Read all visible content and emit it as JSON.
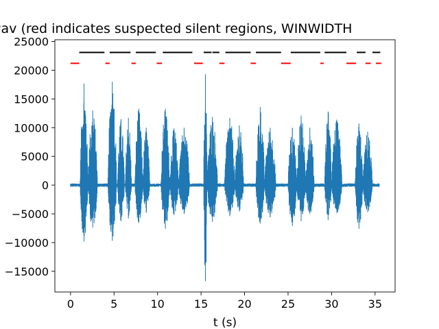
{
  "chart_data": {
    "type": "line",
    "title": "wav (red indicates suspected silent regions, WINWIDTH",
    "xlabel": "t (s)",
    "ylabel": "",
    "xlim": [
      -1.8,
      37.3
    ],
    "ylim": [
      -18600,
      25300
    ],
    "x_ticks": [
      0,
      5,
      10,
      15,
      20,
      25,
      30,
      35
    ],
    "x_tick_labels": [
      "0",
      "5",
      "10",
      "15",
      "20",
      "25",
      "30",
      "35"
    ],
    "y_ticks": [
      -15000,
      -10000,
      -5000,
      0,
      5000,
      10000,
      15000,
      20000,
      25000
    ],
    "y_tick_labels": [
      "−15000",
      "−10000",
      "−5000",
      "0",
      "5000",
      "10000",
      "15000",
      "20000",
      "25000"
    ],
    "grid": false,
    "waveform": {
      "color": "#1f77b4",
      "duration": 35.5,
      "bursts": [
        {
          "start": 1.1,
          "end": 2.0,
          "pos": 17700,
          "neg": -9800
        },
        {
          "start": 2.0,
          "end": 3.1,
          "pos": 13000,
          "neg": -7400
        },
        {
          "start": 4.3,
          "end": 5.3,
          "pos": 18000,
          "neg": -9700
        },
        {
          "start": 5.4,
          "end": 6.2,
          "pos": 11500,
          "neg": -6300
        },
        {
          "start": 6.3,
          "end": 7.0,
          "pos": 11700,
          "neg": -5800
        },
        {
          "start": 7.4,
          "end": 8.3,
          "pos": 13300,
          "neg": -6600
        },
        {
          "start": 8.3,
          "end": 9.1,
          "pos": 10000,
          "neg": -4800
        },
        {
          "start": 10.4,
          "end": 11.4,
          "pos": 13300,
          "neg": -7600
        },
        {
          "start": 11.4,
          "end": 12.4,
          "pos": 9900,
          "neg": -5200
        },
        {
          "start": 12.4,
          "end": 13.7,
          "pos": 10000,
          "neg": -5000
        },
        {
          "start": 15.3,
          "end": 15.7,
          "pos": 19300,
          "neg": -16700
        },
        {
          "start": 15.7,
          "end": 16.9,
          "pos": 11900,
          "neg": -6400
        },
        {
          "start": 17.7,
          "end": 18.9,
          "pos": 11700,
          "neg": -5400
        },
        {
          "start": 18.9,
          "end": 19.9,
          "pos": 10400,
          "neg": -4600
        },
        {
          "start": 21.3,
          "end": 22.3,
          "pos": 13600,
          "neg": -6700
        },
        {
          "start": 22.3,
          "end": 23.6,
          "pos": 10000,
          "neg": -5600
        },
        {
          "start": 25.0,
          "end": 26.0,
          "pos": 10000,
          "neg": -7100
        },
        {
          "start": 26.0,
          "end": 27.0,
          "pos": 12100,
          "neg": -6300
        },
        {
          "start": 27.0,
          "end": 28.0,
          "pos": 10000,
          "neg": -5000
        },
        {
          "start": 29.2,
          "end": 30.0,
          "pos": 12800,
          "neg": -6100
        },
        {
          "start": 30.0,
          "end": 31.2,
          "pos": 11400,
          "neg": -4900
        },
        {
          "start": 32.7,
          "end": 33.6,
          "pos": 10700,
          "neg": -7600
        },
        {
          "start": 33.6,
          "end": 34.7,
          "pos": 9300,
          "neg": -4700
        }
      ]
    },
    "segments_black": {
      "color": "#000000",
      "y": 23100,
      "ranges": [
        [
          1.0,
          3.9
        ],
        [
          4.5,
          6.9
        ],
        [
          7.5,
          9.8
        ],
        [
          10.6,
          14.0
        ],
        [
          15.3,
          16.2
        ],
        [
          16.3,
          17.1
        ],
        [
          17.8,
          20.7
        ],
        [
          21.3,
          24.2
        ],
        [
          25.3,
          28.7
        ],
        [
          29.2,
          31.7
        ],
        [
          32.9,
          33.9
        ],
        [
          34.7,
          35.6
        ]
      ]
    },
    "segments_red": {
      "color": "#ff0000",
      "y": 21200,
      "ranges": [
        [
          0.0,
          1.0
        ],
        [
          4.0,
          4.5
        ],
        [
          7.0,
          7.5
        ],
        [
          9.9,
          10.5
        ],
        [
          14.2,
          15.2
        ],
        [
          17.1,
          17.7
        ],
        [
          20.7,
          21.3
        ],
        [
          24.2,
          25.3
        ],
        [
          28.7,
          29.1
        ],
        [
          31.7,
          32.8
        ],
        [
          33.9,
          34.5
        ],
        [
          35.1,
          35.7
        ]
      ]
    }
  }
}
